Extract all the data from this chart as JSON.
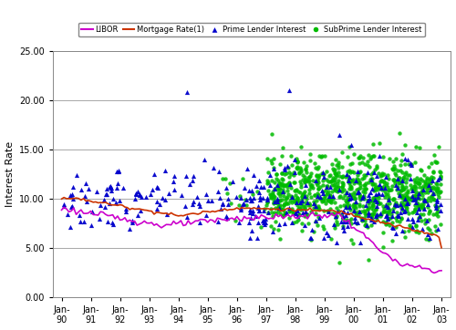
{
  "ylabel": "Interest Rate",
  "ylim": [
    0.0,
    25.0
  ],
  "yticks": [
    0.0,
    5.0,
    10.0,
    15.0,
    20.0,
    25.0
  ],
  "xtick_labels": [
    "Jan-\n90",
    "Jan-\n91",
    "Jan-\n92",
    "Jan-\n93",
    "Jan-\n94",
    "Jan-\n95",
    "Jan-\n96",
    "Jan-\n97",
    "Jan-\n98",
    "Jan-\n99",
    "Jan-\n00",
    "Jan-\n01",
    "Jan-\n02",
    "Jan-\n03"
  ],
  "libor_color": "#CC00CC",
  "mortgage_color": "#CC3300",
  "prime_color": "#0000CC",
  "subprime_color": "#00BB00",
  "background_color": "#FFFFFF",
  "grid_color": "#999999"
}
